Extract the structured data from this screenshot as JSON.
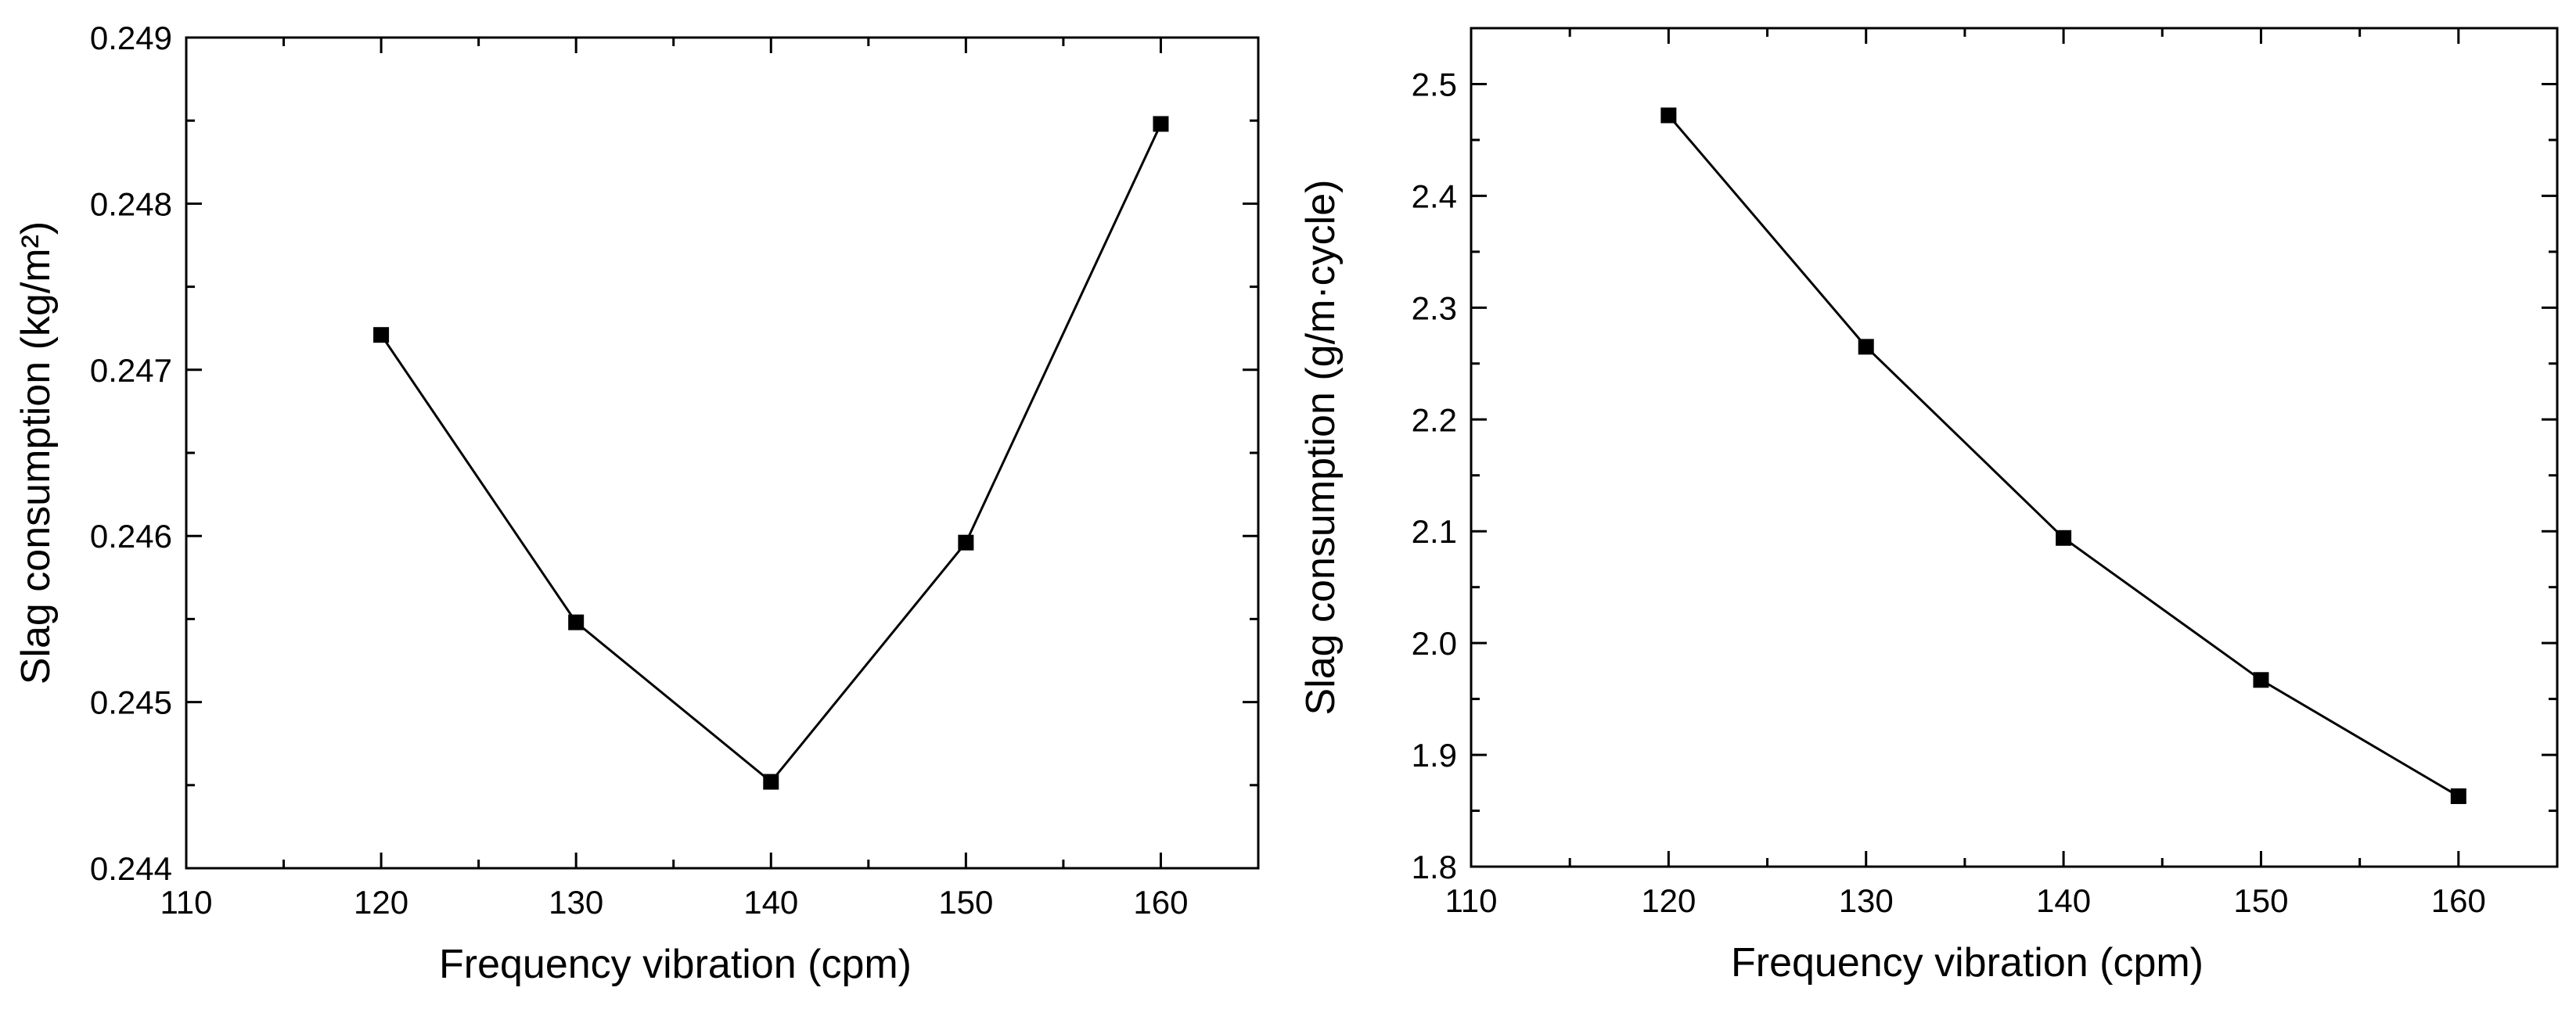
{
  "chart_data": [
    {
      "type": "line",
      "title": "",
      "xlabel": "Frequency vibration (cpm)",
      "ylabel": "Slag consumption (kg/m²)",
      "xlim": [
        110,
        165
      ],
      "ylim": [
        0.244,
        0.249
      ],
      "x_ticks": [
        110,
        120,
        130,
        140,
        150,
        160
      ],
      "x_tick_labels": [
        "110",
        "120",
        "130",
        "140",
        "150",
        "160"
      ],
      "y_ticks": [
        0.244,
        0.245,
        0.246,
        0.247,
        0.248,
        0.249
      ],
      "y_tick_labels": [
        "0.244",
        "0.245",
        "0.246",
        "0.247",
        "0.248",
        "0.249"
      ],
      "x": [
        120,
        130,
        140,
        150,
        160
      ],
      "values": [
        0.24721,
        0.24548,
        0.24452,
        0.24596,
        0.24848
      ],
      "grid": false,
      "marker": "square",
      "color": "#000000"
    },
    {
      "type": "line",
      "title": "",
      "xlabel": "Frequency vibration (cpm)",
      "ylabel": "Slag consumption (g/m·cycle)",
      "xlim": [
        110,
        165
      ],
      "ylim": [
        1.8,
        2.55
      ],
      "x_ticks": [
        110,
        120,
        130,
        140,
        150,
        160
      ],
      "x_tick_labels": [
        "110",
        "120",
        "130",
        "140",
        "150",
        "160"
      ],
      "y_ticks": [
        1.8,
        1.9,
        2.0,
        2.1,
        2.2,
        2.3,
        2.4,
        2.5
      ],
      "y_tick_labels": [
        "1.8",
        "1.9",
        "2.0",
        "2.1",
        "2.2",
        "2.3",
        "2.4",
        "2.5"
      ],
      "x": [
        120,
        130,
        140,
        150,
        160
      ],
      "values": [
        2.472,
        2.265,
        2.094,
        1.967,
        1.863
      ],
      "grid": false,
      "marker": "square",
      "color": "#000000"
    }
  ]
}
